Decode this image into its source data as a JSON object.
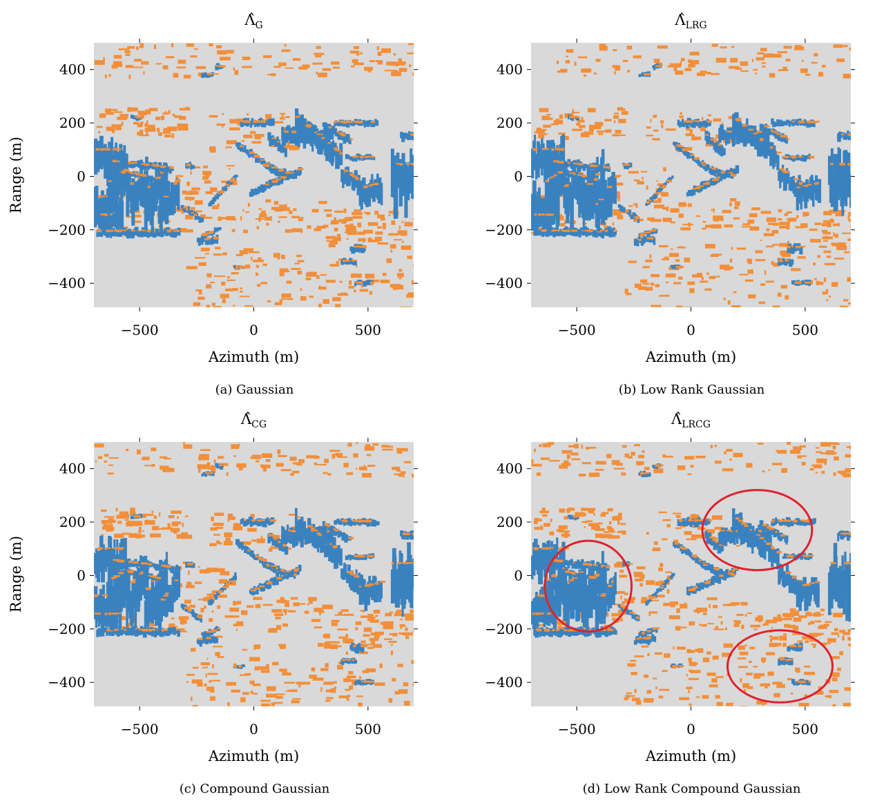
{
  "colors": {
    "background": "#d9d9d9",
    "class_blue": "#3a82bf",
    "class_orange": "#f28f3a",
    "annotation_circle": "#e0212d"
  },
  "chart_data": [
    {
      "type": "heatmap",
      "title_symbol": "Λ̂",
      "title_subscript": "G",
      "caption": "(a) Gaussian",
      "xlabel": "Azimuth (m)",
      "ylabel": "Range (m)",
      "xlim": [
        -700,
        700
      ],
      "ylim": [
        -490,
        500
      ],
      "xticks": [
        -500,
        0,
        500
      ],
      "yticks": [
        400,
        200,
        0,
        -200,
        -400
      ],
      "xtick_labels": [
        "−500",
        "0",
        "500"
      ],
      "ytick_labels": [
        "400",
        "200",
        "0",
        "−200",
        "−400"
      ],
      "grid": false,
      "annotations": []
    },
    {
      "type": "heatmap",
      "title_symbol": "Λ̂",
      "title_subscript": "LRG",
      "caption": "(b) Low Rank Gaussian",
      "xlabel": "Azimuth (m)",
      "ylabel": "",
      "xlim": [
        -700,
        700
      ],
      "ylim": [
        -490,
        500
      ],
      "xticks": [
        -500,
        0,
        500
      ],
      "yticks": [
        400,
        200,
        0,
        -200,
        -400
      ],
      "xtick_labels": [
        "−500",
        "0",
        "500"
      ],
      "ytick_labels": [
        "400",
        "200",
        "0",
        "−200",
        "−400"
      ],
      "grid": false,
      "annotations": []
    },
    {
      "type": "heatmap",
      "title_symbol": "Λ̂",
      "title_subscript": "CG",
      "caption": "(c) Compound Gaussian",
      "xlabel": "Azimuth (m)",
      "ylabel": "Range (m)",
      "xlim": [
        -700,
        700
      ],
      "ylim": [
        -490,
        500
      ],
      "xticks": [
        -500,
        0,
        500
      ],
      "yticks": [
        400,
        200,
        0,
        -200,
        -400
      ],
      "xtick_labels": [
        "−500",
        "0",
        "500"
      ],
      "ytick_labels": [
        "400",
        "200",
        "0",
        "−200",
        "−400"
      ],
      "grid": false,
      "annotations": []
    },
    {
      "type": "heatmap",
      "title_symbol": "Λ̂",
      "title_subscript": "LRCG",
      "caption": "(d) Low Rank Compound Gaussian",
      "xlabel": "Azimuth (m)",
      "ylabel": "",
      "xlim": [
        -700,
        700
      ],
      "ylim": [
        -490,
        500
      ],
      "xticks": [
        -500,
        0,
        500
      ],
      "yticks": [
        400,
        200,
        0,
        -200,
        -400
      ],
      "xtick_labels": [
        "−500",
        "0",
        "500"
      ],
      "ytick_labels": [
        "400",
        "200",
        "0",
        "−200",
        "−400"
      ],
      "grid": false,
      "annotations": [
        {
          "type": "ellipse",
          "cx": -450,
          "cy": -40,
          "rx": 190,
          "ry": 170
        },
        {
          "type": "ellipse",
          "cx": 290,
          "cy": 170,
          "rx": 240,
          "ry": 150
        },
        {
          "type": "ellipse",
          "cx": 390,
          "cy": -340,
          "rx": 230,
          "ry": 135
        }
      ]
    }
  ]
}
